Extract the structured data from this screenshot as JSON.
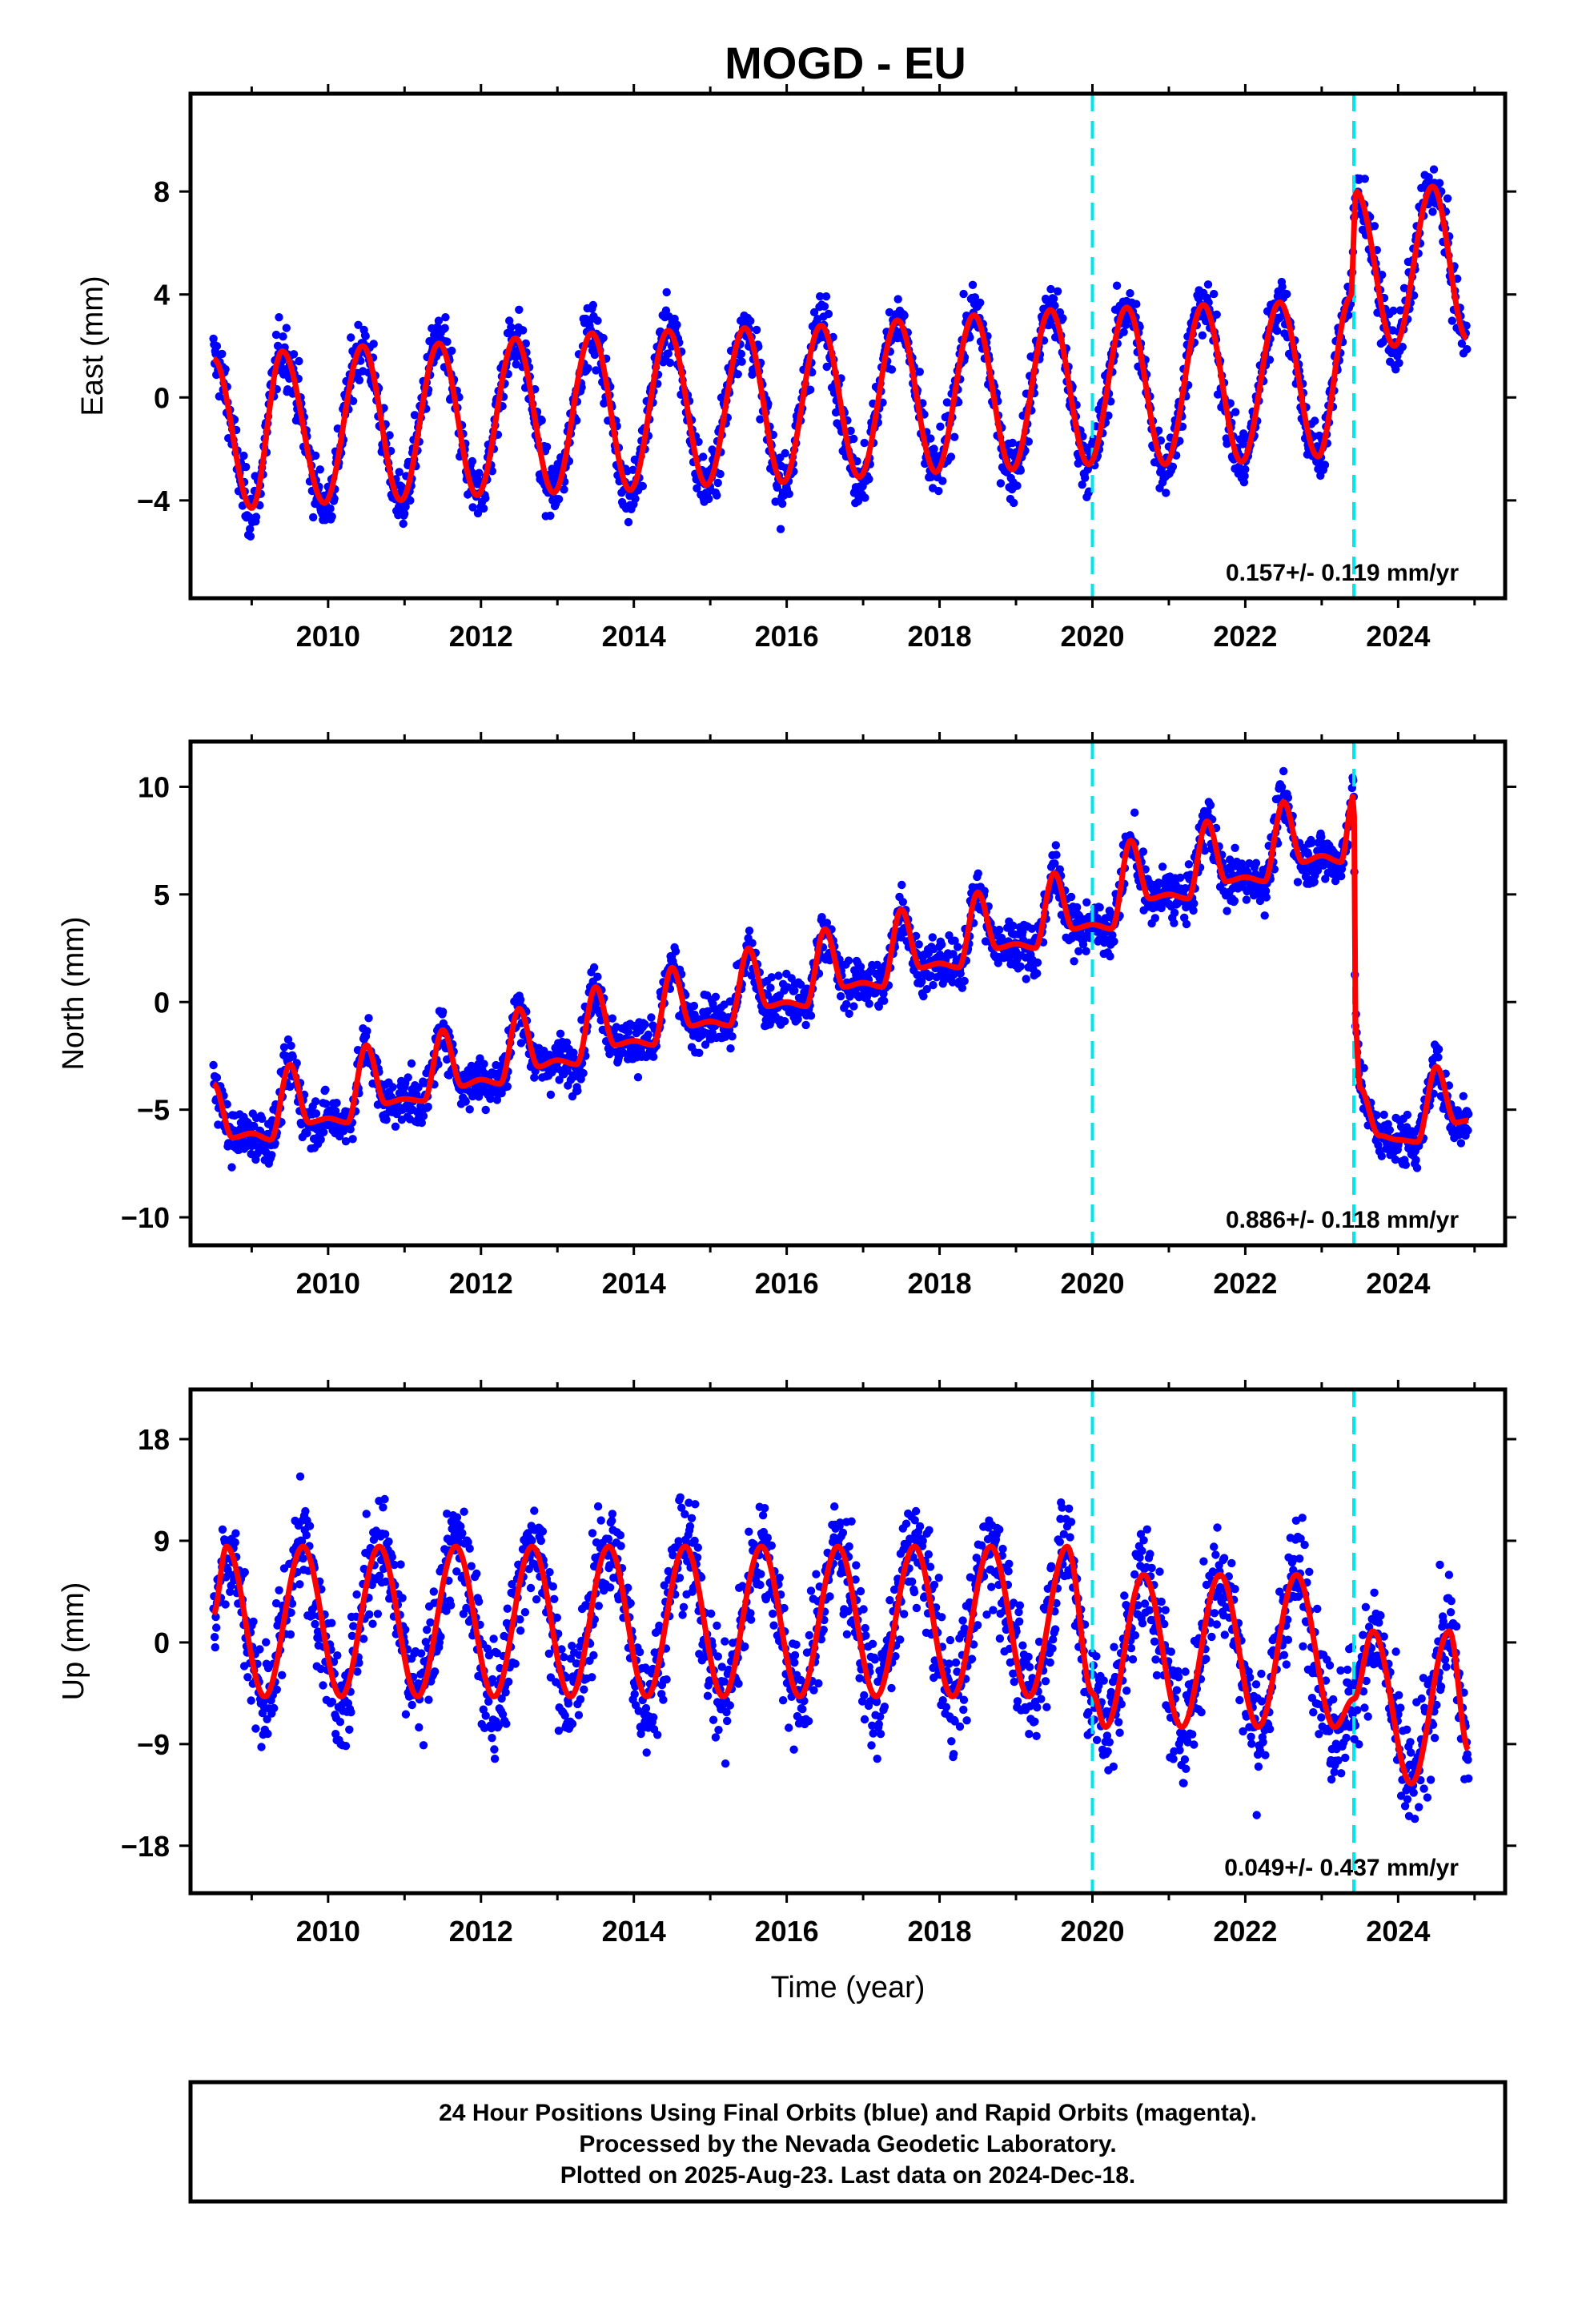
{
  "chart_data": [
    {
      "type": "scatter",
      "title": "MOGD - EU",
      "ylabel": "East (mm)",
      "xlabel": "",
      "xlim": [
        2008.2,
        2025.4
      ],
      "ylim": [
        -7.8,
        11.8
      ],
      "x_ticks": [
        2010,
        2012,
        2014,
        2016,
        2018,
        2020,
        2022,
        2024
      ],
      "y_ticks": [
        -4,
        0,
        4,
        8
      ],
      "rate": "0.157+/- 0.119 mm/yr",
      "event_lines": [
        2020.0,
        2023.42
      ],
      "colors": {
        "points": "#0000ff",
        "model": "#ff0000",
        "events": "#00e5ee"
      },
      "series": [
        {
          "label": "model",
          "x": [
            2008.5,
            2009.0,
            2009.4,
            2009.95,
            2010.45,
            2010.95,
            2011.45,
            2011.95,
            2012.45,
            2012.95,
            2013.45,
            2013.95,
            2014.45,
            2014.95,
            2015.45,
            2015.95,
            2016.45,
            2016.95,
            2017.45,
            2017.95,
            2018.45,
            2018.95,
            2019.45,
            2019.95,
            2020.45,
            2020.95,
            2021.45,
            2021.95,
            2022.45,
            2022.95,
            2023.38,
            2023.45,
            2023.95,
            2024.45,
            2024.9
          ],
          "y": [
            1.5,
            -4.3,
            1.8,
            -4.1,
            2.0,
            -4.0,
            2.1,
            -3.8,
            2.3,
            -3.7,
            2.5,
            -3.6,
            2.6,
            -3.4,
            2.7,
            -3.3,
            2.8,
            -3.1,
            3.0,
            -2.9,
            3.2,
            -2.8,
            3.4,
            -2.6,
            3.5,
            -2.6,
            3.6,
            -2.5,
            3.7,
            -2.3,
            3.9,
            8.0,
            2.0,
            8.2,
            2.3
          ]
        }
      ]
    },
    {
      "type": "scatter",
      "title": "",
      "ylabel": "North (mm)",
      "xlabel": "",
      "xlim": [
        2008.2,
        2025.4
      ],
      "ylim": [
        -11.3,
        12.1
      ],
      "x_ticks": [
        2010,
        2012,
        2014,
        2016,
        2018,
        2020,
        2022,
        2024
      ],
      "y_ticks": [
        -10,
        -5,
        0,
        5,
        10
      ],
      "rate": "0.886+/- 0.118 mm/yr",
      "event_lines": [
        2020.0,
        2023.42
      ],
      "colors": {
        "points": "#0000ff",
        "model": "#ff0000",
        "events": "#00e5ee"
      },
      "series": [
        {
          "label": "model",
          "x": [
            2008.5,
            2008.75,
            2009.0,
            2009.25,
            2009.5,
            2009.75,
            2010.0,
            2010.25,
            2010.5,
            2010.75,
            2011.0,
            2011.25,
            2011.5,
            2011.75,
            2012.0,
            2012.25,
            2012.5,
            2012.75,
            2013.0,
            2013.25,
            2013.5,
            2013.75,
            2014.0,
            2014.25,
            2014.5,
            2014.75,
            2015.0,
            2015.25,
            2015.5,
            2015.75,
            2016.0,
            2016.25,
            2016.5,
            2016.75,
            2017.0,
            2017.25,
            2017.5,
            2017.75,
            2018.0,
            2018.25,
            2018.5,
            2018.75,
            2019.0,
            2019.25,
            2019.5,
            2019.75,
            2020.0,
            2020.25,
            2020.5,
            2020.75,
            2021.0,
            2021.25,
            2021.5,
            2021.75,
            2022.0,
            2022.25,
            2022.5,
            2022.75,
            2023.0,
            2023.25,
            2023.42,
            2023.44,
            2023.5,
            2023.75,
            2024.0,
            2024.25,
            2024.5,
            2024.75,
            2024.92
          ],
          "y": [
            -3.8,
            -6.3,
            -6.1,
            -6.4,
            -2.9,
            -5.6,
            -5.4,
            -5.6,
            -2.0,
            -4.7,
            -4.5,
            -4.6,
            -1.3,
            -3.9,
            -3.6,
            -3.8,
            -0.3,
            -3.0,
            -2.7,
            -2.9,
            0.7,
            -2.0,
            -1.8,
            -2.0,
            1.6,
            -1.1,
            -0.9,
            -1.1,
            2.5,
            -0.2,
            0.0,
            -0.2,
            3.4,
            0.7,
            0.9,
            0.7,
            4.3,
            1.6,
            1.8,
            1.6,
            5.1,
            2.5,
            2.7,
            2.5,
            6.0,
            3.4,
            3.6,
            3.4,
            7.5,
            4.8,
            5.0,
            4.8,
            8.4,
            5.6,
            5.8,
            5.6,
            9.3,
            6.5,
            6.8,
            6.5,
            9.6,
            -1.0,
            -4.0,
            -6.2,
            -6.4,
            -6.5,
            -3.0,
            -5.6,
            -5.5
          ]
        }
      ]
    },
    {
      "type": "scatter",
      "title": "",
      "ylabel": "Up (mm)",
      "xlabel": "Time (year)",
      "xlim": [
        2008.2,
        2025.4
      ],
      "ylim": [
        -22.2,
        22.4
      ],
      "x_ticks": [
        2010,
        2012,
        2014,
        2016,
        2018,
        2020,
        2022,
        2024
      ],
      "y_ticks": [
        -18,
        -9,
        0,
        9,
        18
      ],
      "rate": "0.049+/- 0.437 mm/yr",
      "event_lines": [
        2020.0,
        2023.42
      ],
      "colors": {
        "points": "#0000ff",
        "model": "#ff0000",
        "events": "#00e5ee"
      },
      "series": [
        {
          "label": "model",
          "x": [
            2008.5,
            2008.67,
            2009.17,
            2009.67,
            2010.17,
            2010.67,
            2011.17,
            2011.67,
            2012.17,
            2012.67,
            2013.17,
            2013.67,
            2014.17,
            2014.67,
            2015.17,
            2015.67,
            2016.17,
            2016.67,
            2017.17,
            2017.67,
            2018.17,
            2018.67,
            2019.17,
            2019.67,
            2020.0,
            2020.17,
            2020.67,
            2021.17,
            2021.67,
            2022.17,
            2022.67,
            2023.17,
            2023.42,
            2023.67,
            2024.17,
            2024.67,
            2024.92
          ],
          "y": [
            2.5,
            8.5,
            -4.8,
            8.5,
            -4.8,
            8.5,
            -4.8,
            8.5,
            -4.8,
            8.5,
            -4.8,
            8.5,
            -4.8,
            8.5,
            -4.8,
            8.5,
            -4.8,
            8.5,
            -4.8,
            8.5,
            -4.8,
            8.5,
            -4.8,
            8.5,
            -4.5,
            -7.5,
            6.0,
            -7.5,
            6.0,
            -7.5,
            6.0,
            -7.5,
            -5.0,
            1.0,
            -12.5,
            1.0,
            -9.5
          ]
        }
      ]
    }
  ],
  "footer": {
    "line1": "24 Hour Positions Using Final Orbits (blue) and Rapid Orbits (magenta).",
    "line2": "Processed by the Nevada Geodetic Laboratory.",
    "line3": "Plotted on 2025-Aug-23. Last data on 2024-Dec-18."
  }
}
